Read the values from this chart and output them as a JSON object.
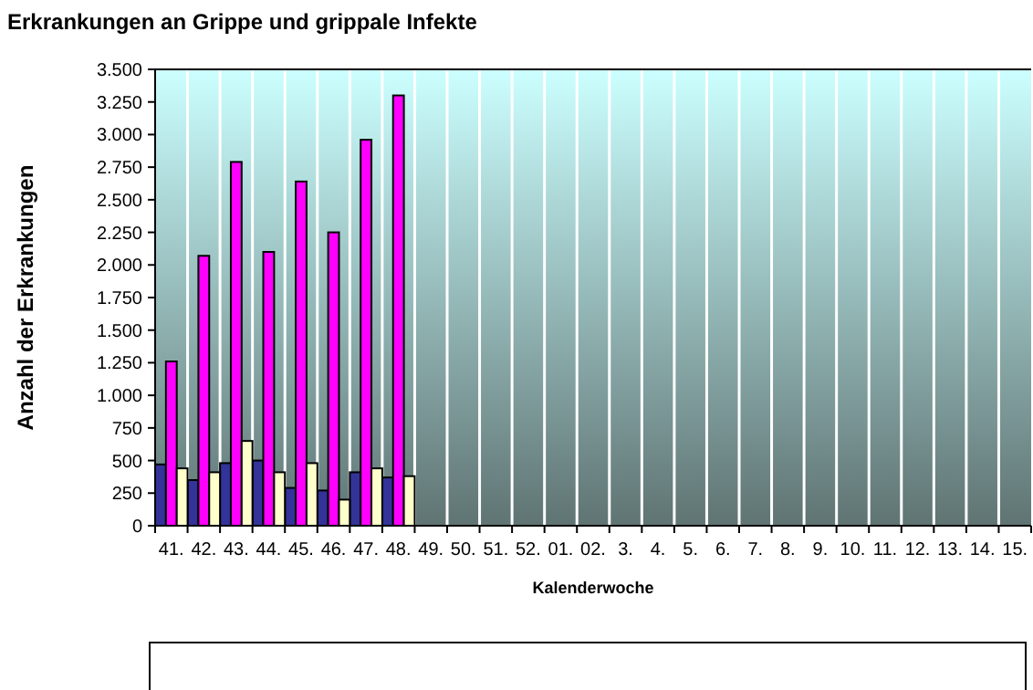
{
  "chart_data": {
    "type": "bar",
    "title": "Erkrankungen an Grippe und grippale Infekte",
    "xlabel": "Kalenderwoche",
    "ylabel": "Anzahl der Erkrankungen",
    "categories": [
      "41.",
      "42.",
      "43.",
      "44.",
      "45.",
      "46.",
      "47.",
      "48.",
      "49.",
      "50.",
      "51.",
      "52.",
      "01.",
      "02.",
      "3.",
      "4.",
      "5.",
      "6.",
      "7.",
      "8.",
      "9.",
      "10.",
      "11.",
      "12.",
      "13.",
      "14.",
      "15."
    ],
    "series": [
      {
        "color": "#333399",
        "values": [
          470,
          350,
          480,
          500,
          290,
          270,
          410,
          370,
          null,
          null,
          null,
          null,
          null,
          null,
          null,
          null,
          null,
          null,
          null,
          null,
          null,
          null,
          null,
          null,
          null,
          null,
          null
        ]
      },
      {
        "color": "#ff00ff",
        "values": [
          1260,
          2070,
          2790,
          2100,
          2640,
          2250,
          2960,
          3300,
          null,
          null,
          null,
          null,
          null,
          null,
          null,
          null,
          null,
          null,
          null,
          null,
          null,
          null,
          null,
          null,
          null,
          null,
          null
        ]
      },
      {
        "color": "#ffffcc",
        "values": [
          440,
          410,
          650,
          410,
          480,
          200,
          440,
          380,
          null,
          null,
          null,
          null,
          null,
          null,
          null,
          null,
          null,
          null,
          null,
          null,
          null,
          null,
          null,
          null,
          null,
          null,
          null
        ]
      }
    ],
    "ylim": [
      0,
      3500
    ],
    "yticks": [
      {
        "value": 0,
        "label": "0"
      },
      {
        "value": 250,
        "label": "250"
      },
      {
        "value": 500,
        "label": "500"
      },
      {
        "value": 750,
        "label": "750"
      },
      {
        "value": 1000,
        "label": "1.000"
      },
      {
        "value": 1250,
        "label": "1.250"
      },
      {
        "value": 1500,
        "label": "1.500"
      },
      {
        "value": 1750,
        "label": "1.750"
      },
      {
        "value": 2000,
        "label": "2.000"
      },
      {
        "value": 2250,
        "label": "2.250"
      },
      {
        "value": 2500,
        "label": "2.500"
      },
      {
        "value": 2750,
        "label": "2.750"
      },
      {
        "value": 3000,
        "label": "3.000"
      },
      {
        "value": 3250,
        "label": "3.250"
      },
      {
        "value": 3500,
        "label": "3.500"
      }
    ],
    "grid": "x"
  }
}
